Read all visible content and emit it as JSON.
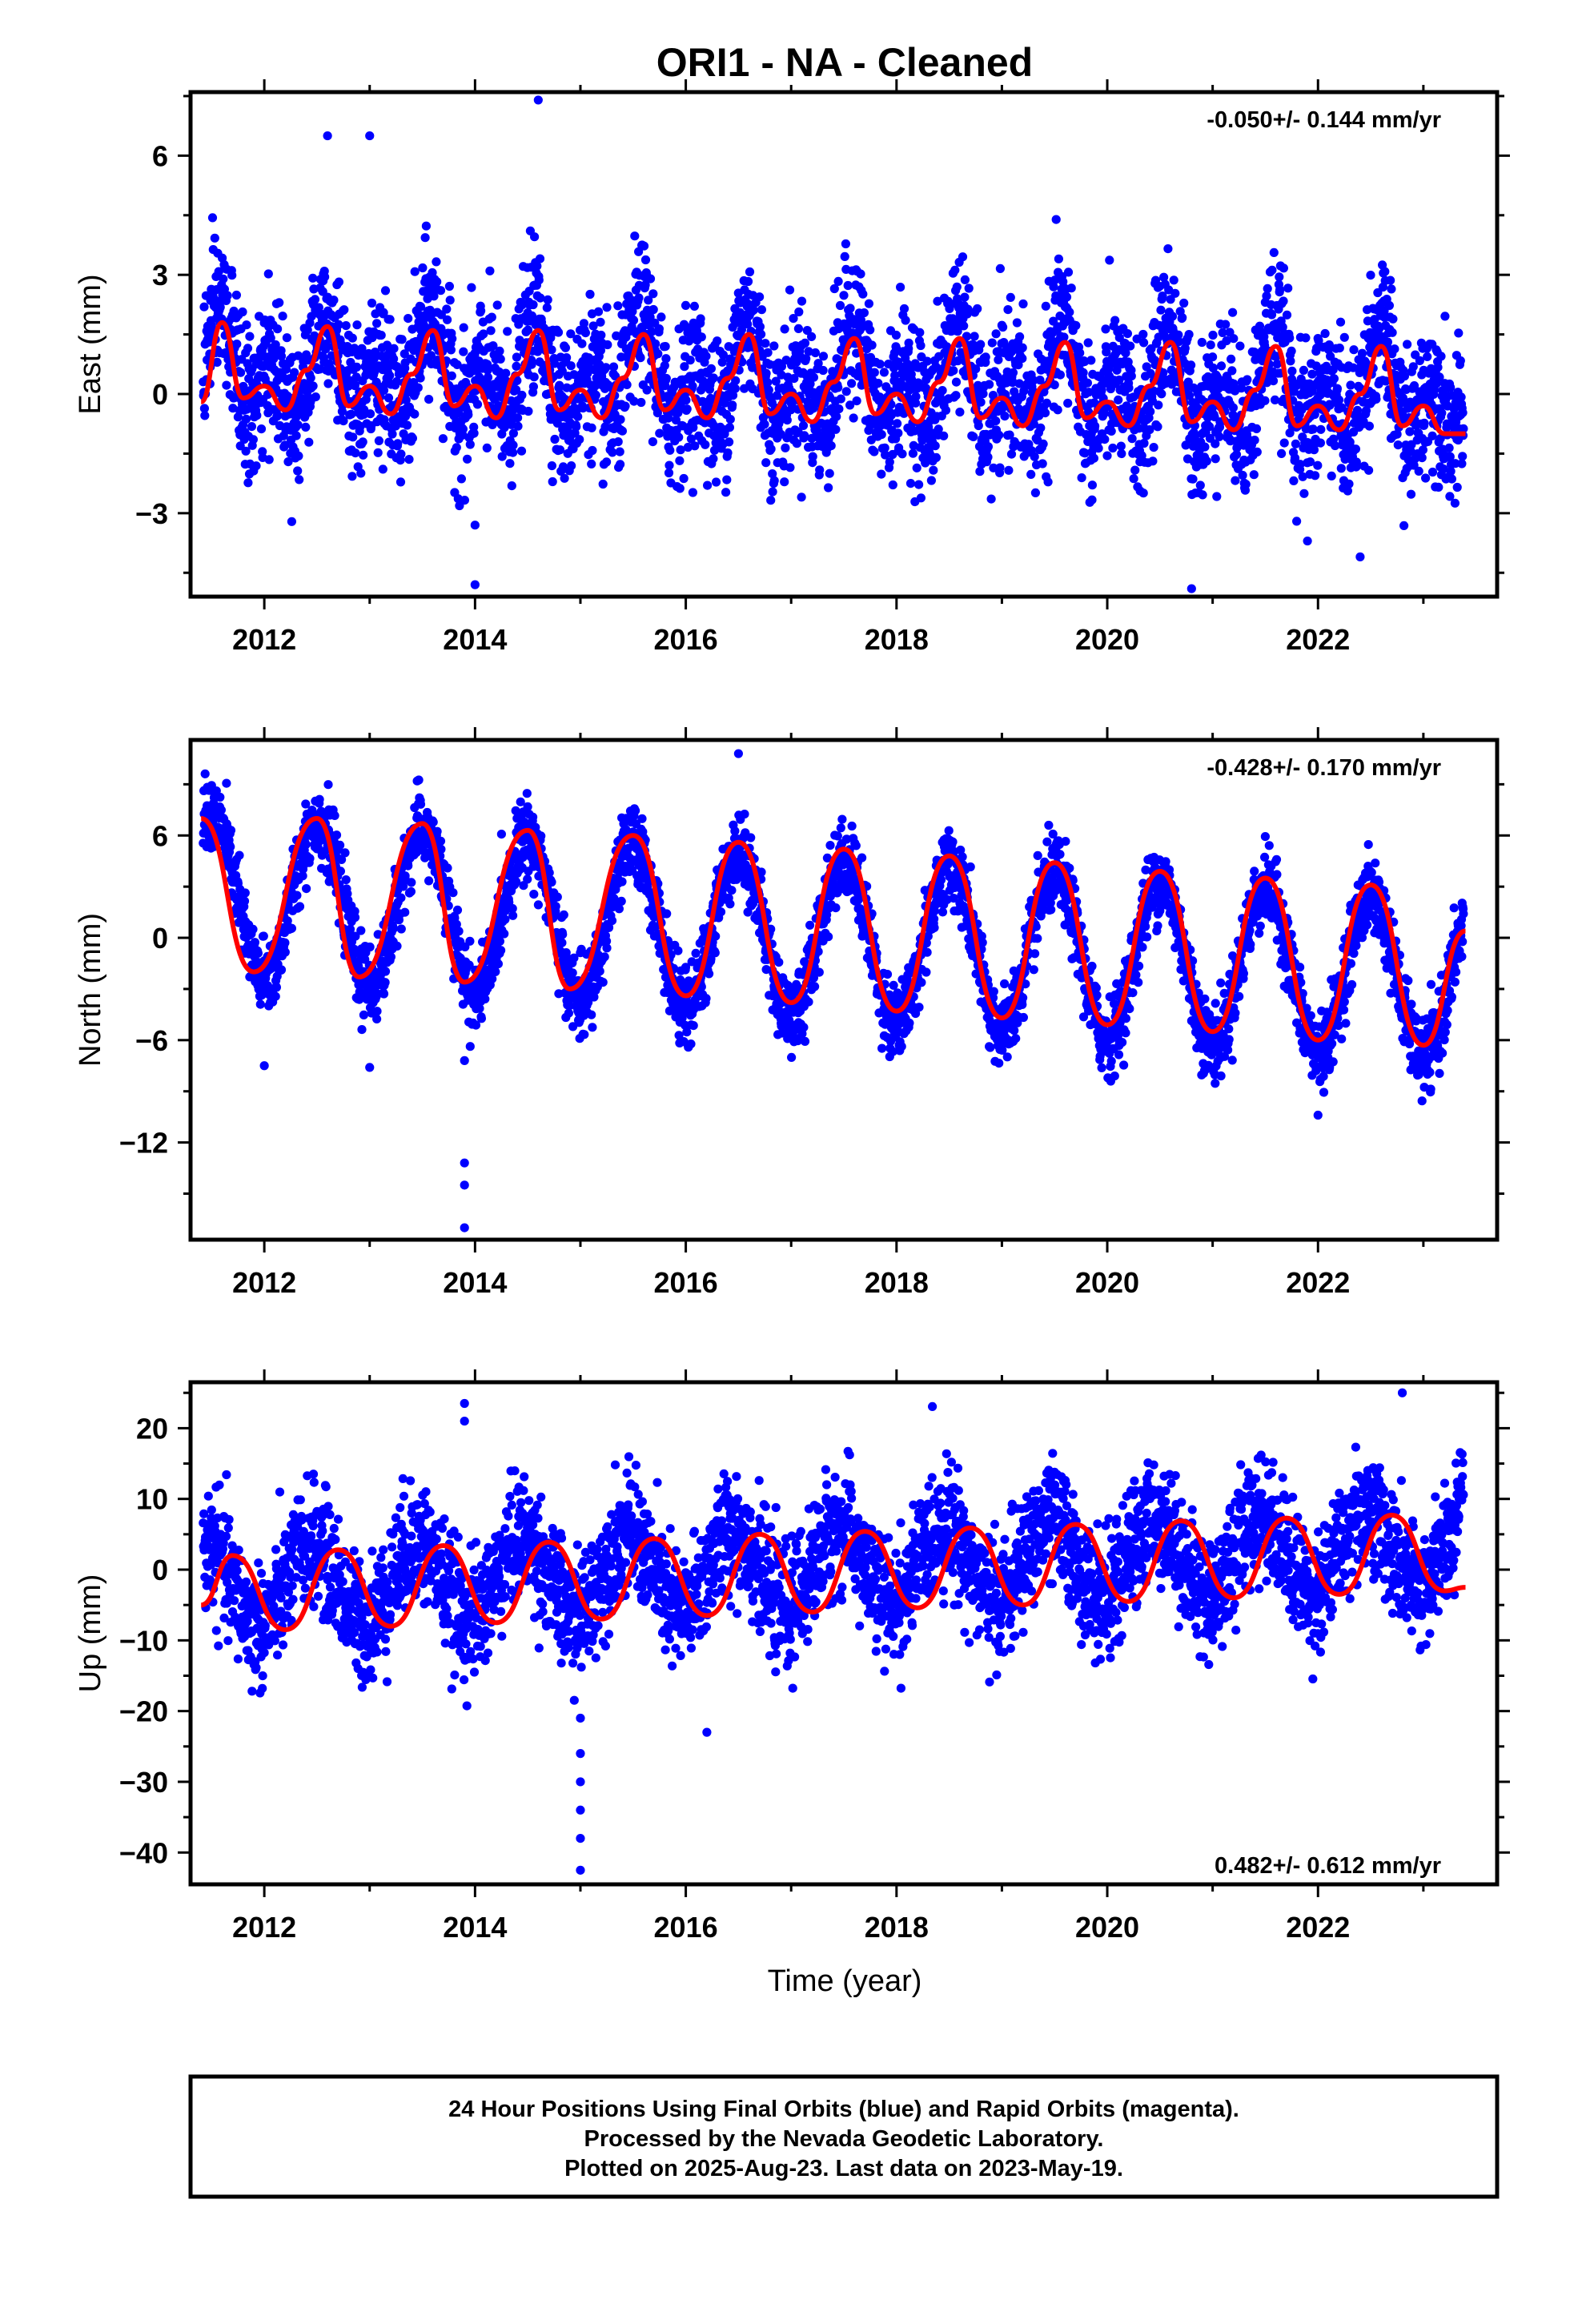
{
  "chart_data": {
    "type": "scatter",
    "title": "ORI1  - NA - Cleaned",
    "xlabel": "Time (year)",
    "xlim": [
      2011.3,
      2023.7
    ],
    "xticks": [
      2012,
      2014,
      2016,
      2018,
      2020,
      2022
    ],
    "marker_color": "#0000ff",
    "fit_color": "#ff0000",
    "panels": [
      {
        "name": "east",
        "ylabel": "East (mm)",
        "ylim": [
          -5.1,
          7.6
        ],
        "yticks": [
          -3,
          0,
          3,
          6
        ],
        "rate_text": "-0.050+/- 0.144 mm/yr",
        "rate_position": "top-right",
        "model": {
          "offset": 0.6,
          "trend": -0.05,
          "annual_amp": 0.7,
          "annual_phase": 0.58,
          "semiannual_amp": 0.85,
          "semiannual_phase": 0.58,
          "noise": 0.9
        },
        "fit": {
          "x": [
            2011.4,
            2011.6,
            2011.8,
            2012.0,
            2012.2,
            2012.4,
            2012.6,
            2012.8,
            2013.0,
            2013.2,
            2013.4,
            2013.6,
            2013.8,
            2014.0,
            2014.2,
            2014.4,
            2014.6,
            2014.8,
            2015.0,
            2015.2,
            2015.4,
            2015.6,
            2015.8,
            2016.0,
            2016.2,
            2016.4,
            2016.6,
            2016.8,
            2017.0,
            2017.2,
            2017.4,
            2017.6,
            2017.8,
            2018.0,
            2018.2,
            2018.4,
            2018.6,
            2018.8,
            2019.0,
            2019.2,
            2019.4,
            2019.6,
            2019.8,
            2020.0,
            2020.2,
            2020.4,
            2020.6,
            2020.8,
            2021.0,
            2021.2,
            2021.4,
            2021.6,
            2021.8,
            2022.0,
            2022.2,
            2022.4,
            2022.6,
            2022.8,
            2023.0,
            2023.2,
            2023.4
          ],
          "y": [
            -0.2,
            1.8,
            -0.1,
            0.2,
            -0.4,
            0.6,
            1.7,
            -0.3,
            0.2,
            -0.5,
            0.5,
            1.6,
            -0.3,
            0.2,
            -0.6,
            0.5,
            1.6,
            -0.4,
            0.1,
            -0.6,
            0.4,
            1.5,
            -0.4,
            0.1,
            -0.6,
            0.4,
            1.5,
            -0.5,
            0.0,
            -0.7,
            0.3,
            1.4,
            -0.5,
            0.0,
            -0.7,
            0.3,
            1.4,
            -0.6,
            -0.1,
            -0.8,
            0.2,
            1.3,
            -0.6,
            -0.2,
            -0.8,
            0.2,
            1.3,
            -0.7,
            -0.2,
            -0.9,
            0.1,
            1.2,
            -0.8,
            -0.3,
            -0.9,
            0.0,
            1.2,
            -0.8,
            -0.3,
            -1.0,
            -1.0
          ]
        },
        "outliers": [
          [
            2014.6,
            7.4
          ],
          [
            2013.0,
            6.5
          ],
          [
            2012.6,
            6.5
          ],
          [
            2014.0,
            -4.8
          ],
          [
            2020.8,
            -4.9
          ],
          [
            2014.0,
            -3.3
          ],
          [
            2022.4,
            -4.1
          ],
          [
            2021.9,
            -3.7
          ]
        ]
      },
      {
        "name": "north",
        "ylabel": "North (mm)",
        "ylim": [
          -17.7,
          11.6
        ],
        "yticks": [
          -12,
          -6,
          0,
          6
        ],
        "rate_text": "-0.428+/- 0.170 mm/yr",
        "rate_position": "top-right",
        "model": {
          "offset": 2.55,
          "trend": -0.428,
          "annual_amp": 4.7,
          "annual_phase": 0.5,
          "semiannual_amp": 0.0,
          "semiannual_phase": 0.0,
          "noise": 1.1
        },
        "fit": {
          "x": [
            2011.4,
            2011.9,
            2012.5,
            2012.9,
            2013.5,
            2013.9,
            2014.5,
            2014.9,
            2015.5,
            2016.0,
            2016.5,
            2017.0,
            2017.5,
            2018.0,
            2018.5,
            2019.0,
            2019.5,
            2020.0,
            2020.5,
            2021.0,
            2021.5,
            2022.0,
            2022.5,
            2023.0,
            2023.4
          ],
          "y": [
            7.0,
            -2.0,
            7.0,
            -2.3,
            6.7,
            -2.6,
            6.3,
            -3.0,
            6.0,
            -3.4,
            5.6,
            -3.8,
            5.2,
            -4.3,
            4.8,
            -4.7,
            4.4,
            -5.1,
            3.9,
            -5.5,
            3.5,
            -6.0,
            3.1,
            -6.3,
            0.4
          ]
        },
        "outliers": [
          [
            2013.9,
            -13.2
          ],
          [
            2013.9,
            -14.5
          ],
          [
            2013.9,
            -17.0
          ],
          [
            2013.9,
            -7.2
          ],
          [
            2012.0,
            -7.5
          ],
          [
            2013.0,
            -7.6
          ],
          [
            2016.5,
            10.8
          ],
          [
            2022.0,
            -10.4
          ]
        ]
      },
      {
        "name": "up",
        "ylabel": "Up (mm)",
        "ylim": [
          -44.5,
          26.5
        ],
        "yticks": [
          -40,
          -30,
          -20,
          -10,
          0,
          10,
          20
        ],
        "rate_text": "0.482+/- 0.612 mm/yr",
        "rate_position": "bottom-right",
        "model": {
          "offset": -2.6,
          "trend": 0.482,
          "annual_amp": 5.6,
          "annual_phase": 0.45,
          "semiannual_amp": 0.0,
          "semiannual_phase": 0.0,
          "noise": 4.2
        },
        "fit": {
          "x": [
            2011.4,
            2011.7,
            2012.2,
            2012.7,
            2013.2,
            2013.7,
            2014.2,
            2014.7,
            2015.2,
            2015.7,
            2016.2,
            2016.7,
            2017.2,
            2017.7,
            2018.2,
            2018.7,
            2019.2,
            2019.7,
            2020.2,
            2020.7,
            2021.2,
            2021.7,
            2022.2,
            2022.7,
            2023.2,
            2023.4
          ],
          "y": [
            -5.0,
            2.0,
            -8.5,
            2.8,
            -8.0,
            3.4,
            -7.5,
            3.9,
            -7.0,
            4.4,
            -6.5,
            5.0,
            -6.0,
            5.4,
            -5.4,
            5.9,
            -5.0,
            6.4,
            -4.5,
            6.9,
            -4.0,
            7.3,
            -3.5,
            7.7,
            -3.0,
            -2.5
          ]
        },
        "outliers": [
          [
            2013.9,
            23.5
          ],
          [
            2013.9,
            21.0
          ],
          [
            2015.0,
            -42.5
          ],
          [
            2015.0,
            -38.0
          ],
          [
            2015.0,
            -34.0
          ],
          [
            2015.0,
            -30.0
          ],
          [
            2015.0,
            -26.0
          ],
          [
            2015.0,
            -21.0
          ],
          [
            2016.2,
            -23.0
          ],
          [
            2022.8,
            25.0
          ]
        ]
      }
    ]
  },
  "footer": {
    "line1": "24 Hour Positions Using Final Orbits (blue) and Rapid Orbits (magenta).",
    "line2": "Processed by the Nevada Geodetic Laboratory.",
    "line3": "Plotted on 2025-Aug-23. Last data on 2023-May-19."
  }
}
